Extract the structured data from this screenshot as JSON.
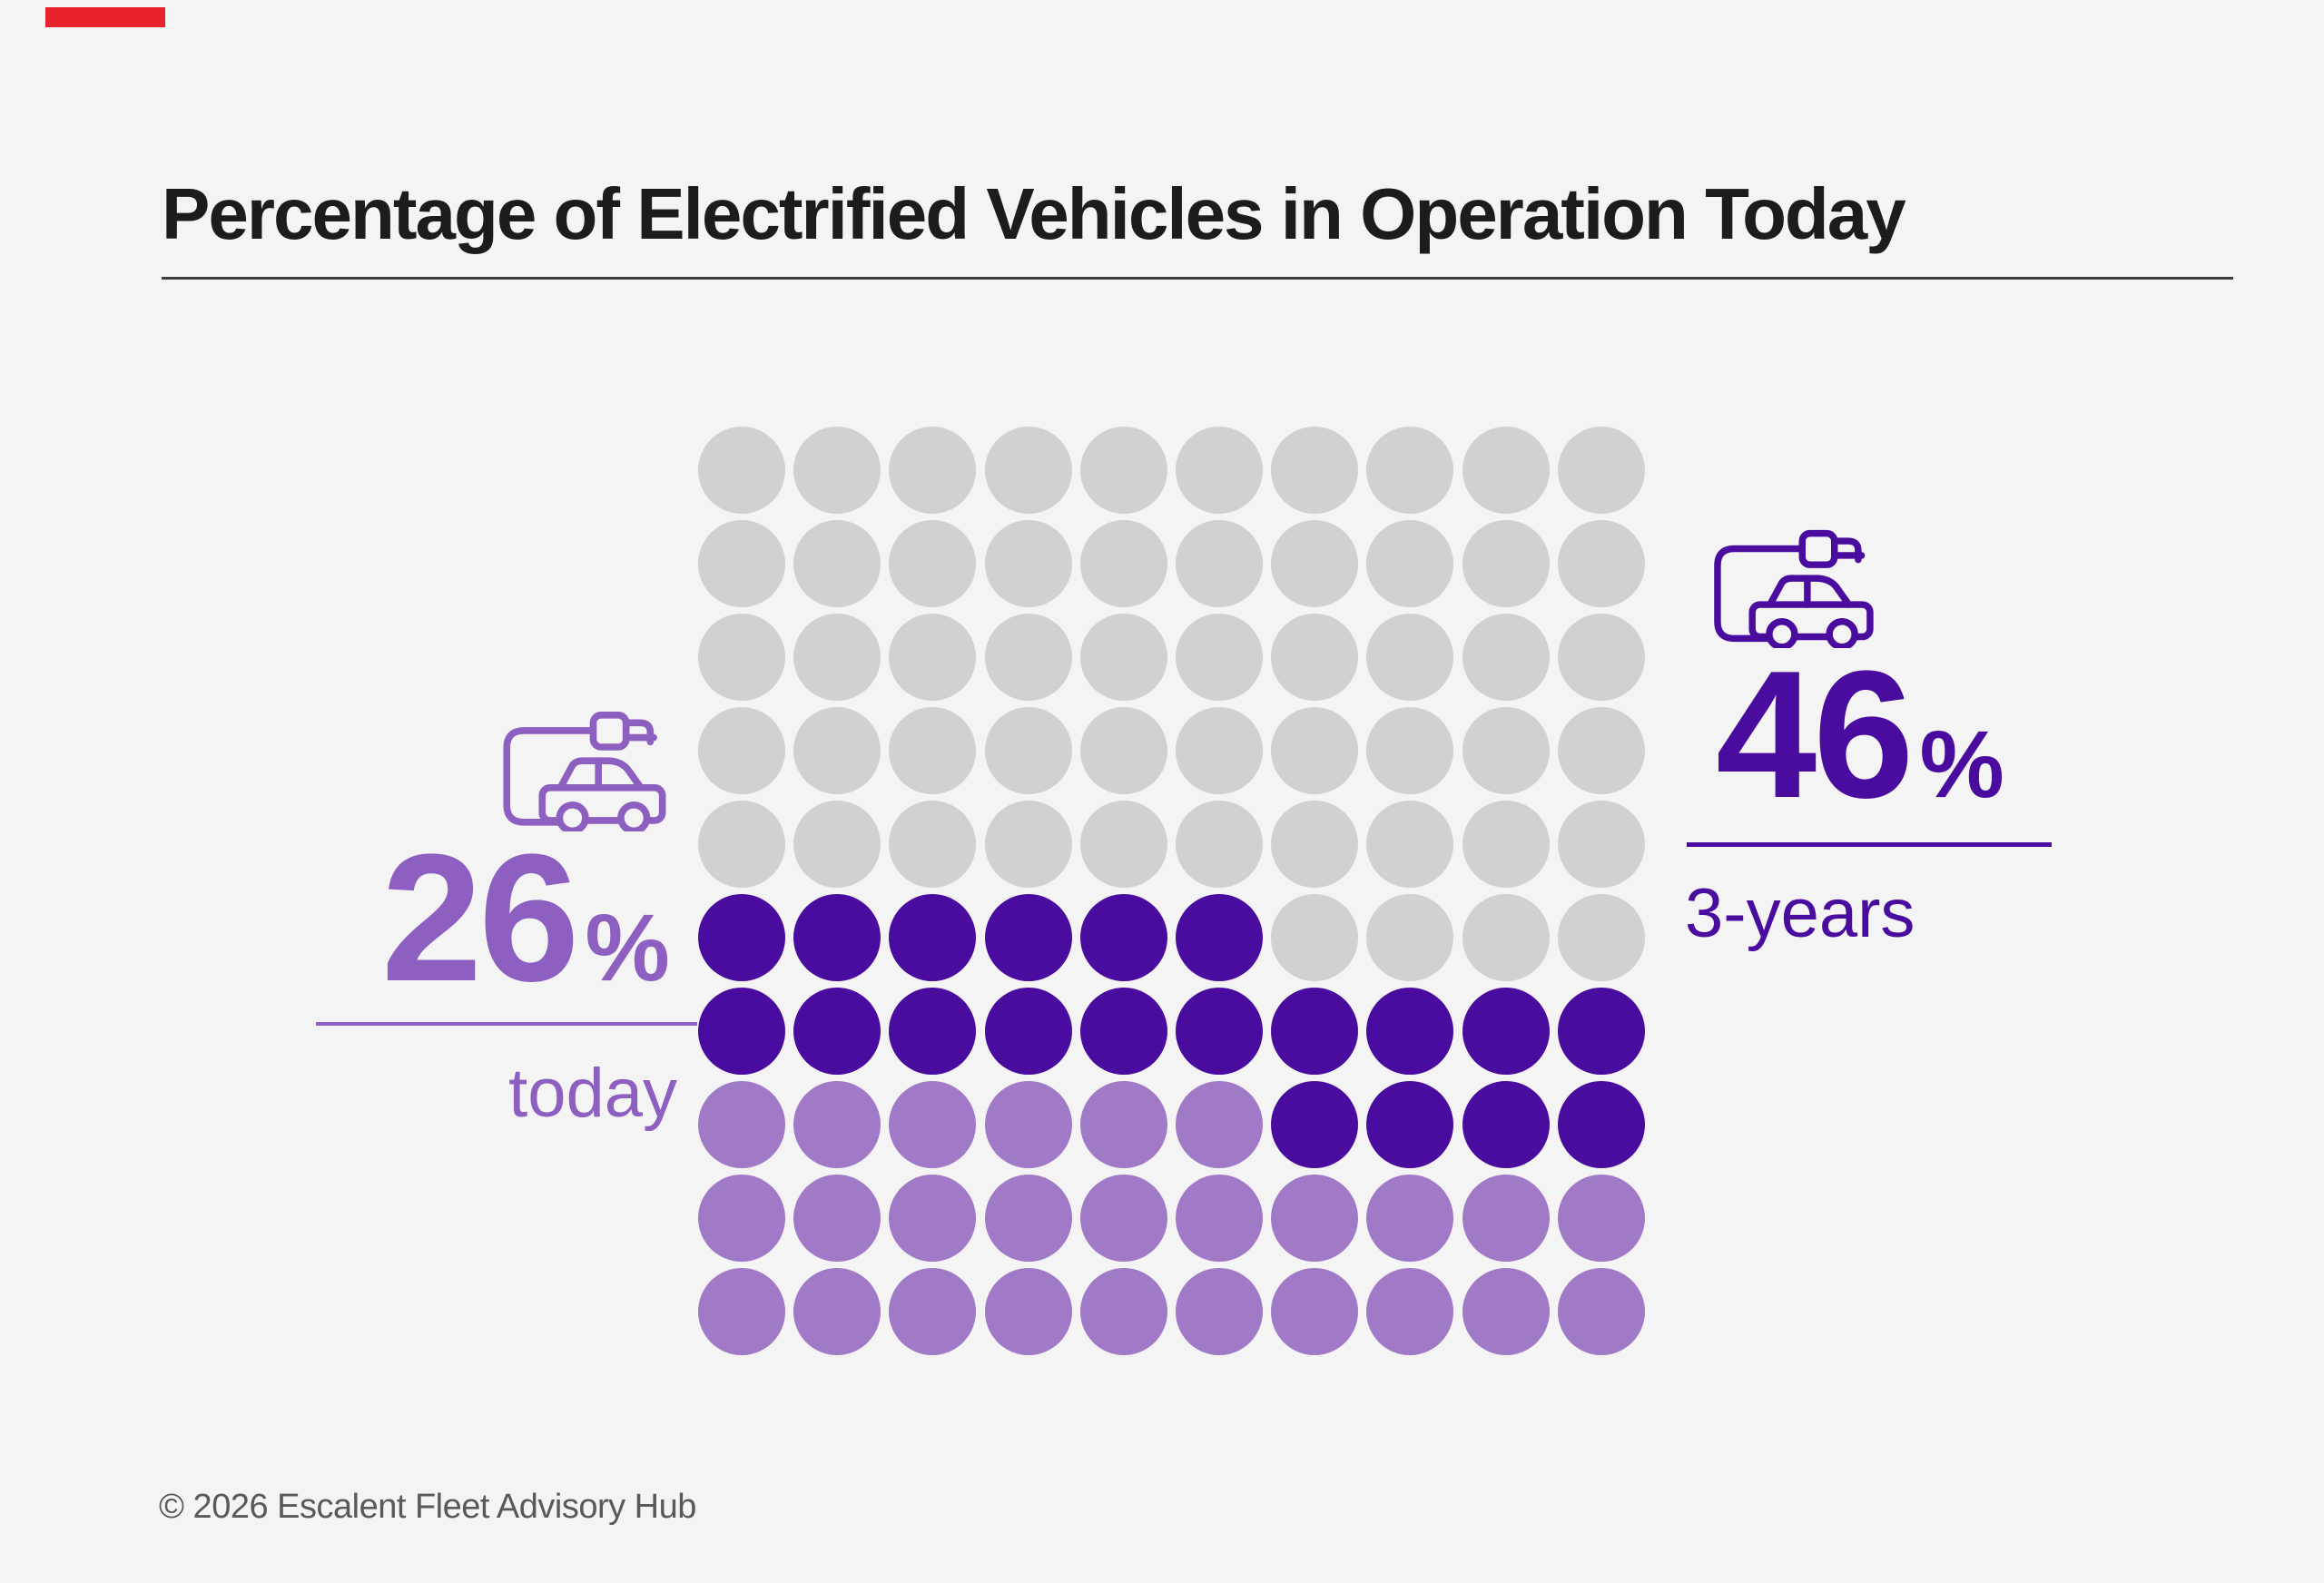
{
  "page": {
    "background": "#f5f4f5",
    "title_color": "#1c1c1c",
    "title_rule_color": "#3d3d3d",
    "footer_color": "#595959"
  },
  "brand_bar": {
    "color": "#e8232b"
  },
  "header": {
    "title": "Percentage of Electrified Vehicles in Operation Today"
  },
  "chart_data": {
    "type": "waffle",
    "title": "Percentage of Electrified Vehicles in Operation Today",
    "grid": {
      "rows": 10,
      "columns": 10,
      "dot_unit_percent": 1,
      "dot_total": 100
    },
    "categories": [
      "today",
      "3-years"
    ],
    "values": [
      26,
      46
    ],
    "colors": {
      "today": "#a07ac6",
      "three_years": "#4a0c9f",
      "unfilled": "#d2d0d1"
    },
    "rows_pattern": [
      [
        [
          "unfilled",
          10
        ]
      ],
      [
        [
          "unfilled",
          10
        ]
      ],
      [
        [
          "unfilled",
          10
        ]
      ],
      [
        [
          "unfilled",
          10
        ]
      ],
      [
        [
          "unfilled",
          10
        ]
      ],
      [
        [
          "three_years",
          6
        ],
        [
          "unfilled",
          4
        ]
      ],
      [
        [
          "three_years",
          10
        ]
      ],
      [
        [
          "today",
          6
        ],
        [
          "three_years",
          4
        ]
      ],
      [
        [
          "today",
          10
        ]
      ],
      [
        [
          "today",
          10
        ]
      ]
    ],
    "labels": {
      "left": {
        "value": "26",
        "suffix": "%",
        "caption": "today",
        "color": "#8d5fc0"
      },
      "right": {
        "value": "46",
        "suffix": "%",
        "caption": "3-years",
        "color": "#4a0c9f"
      }
    },
    "legend_position": "none",
    "grid_lines": false
  },
  "footer": {
    "copyright": "© 2026 Escalent Fleet Advisory Hub"
  }
}
